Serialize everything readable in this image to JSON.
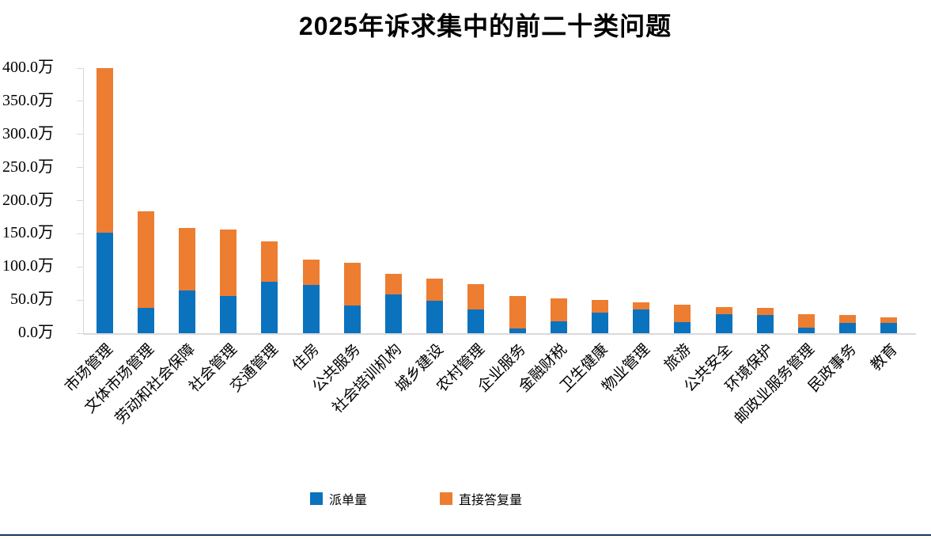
{
  "title": "2025年诉求集中的前二十类问题",
  "legend": {
    "series1_label": "派单量",
    "series2_label": "直接答复量"
  },
  "colors": {
    "dispatch_blue": "#0b72be",
    "direct_reply_orange": "#ed7d31",
    "axis_gray": "#d9d9d9",
    "bottom_rule": "#17375e"
  },
  "y_axis": {
    "unit": "万",
    "tick_labels": [
      "400.0万",
      "350.0万",
      "300.0万",
      "250.0万",
      "200.0万",
      "150.0万",
      "100.0万",
      "50.0万",
      "0.0万"
    ]
  },
  "chart_data": {
    "type": "bar",
    "stacked": true,
    "title": "2025年诉求集中的前二十类问题",
    "legend_position": "bottom",
    "grid": false,
    "ylim": [
      0,
      400
    ],
    "y_tick_step": 50,
    "y_unit": "万",
    "categories": [
      "市场管理",
      "文体市场管理",
      "劳动和社会保障",
      "社会管理",
      "交通管理",
      "住房",
      "公共服务",
      "社会培训机构",
      "城乡建设",
      "农村管理",
      "企业服务",
      "金融财税",
      "卫生健康",
      "物业管理",
      "旅游",
      "公共安全",
      "环境保护",
      "邮政业服务管理",
      "民政事务",
      "教育"
    ],
    "series": [
      {
        "name": "派单量",
        "color": "#0b72be",
        "values": [
          152,
          38,
          65,
          56,
          78,
          73,
          42,
          58,
          49,
          36,
          7,
          18,
          31,
          36,
          17,
          29,
          27,
          8,
          15,
          16
        ]
      },
      {
        "name": "直接答复量",
        "color": "#ed7d31",
        "values": [
          248,
          146,
          94,
          100,
          61,
          38,
          64,
          31,
          33,
          38,
          49,
          35,
          19,
          10,
          26,
          11,
          11,
          21,
          13,
          8
        ]
      }
    ]
  }
}
